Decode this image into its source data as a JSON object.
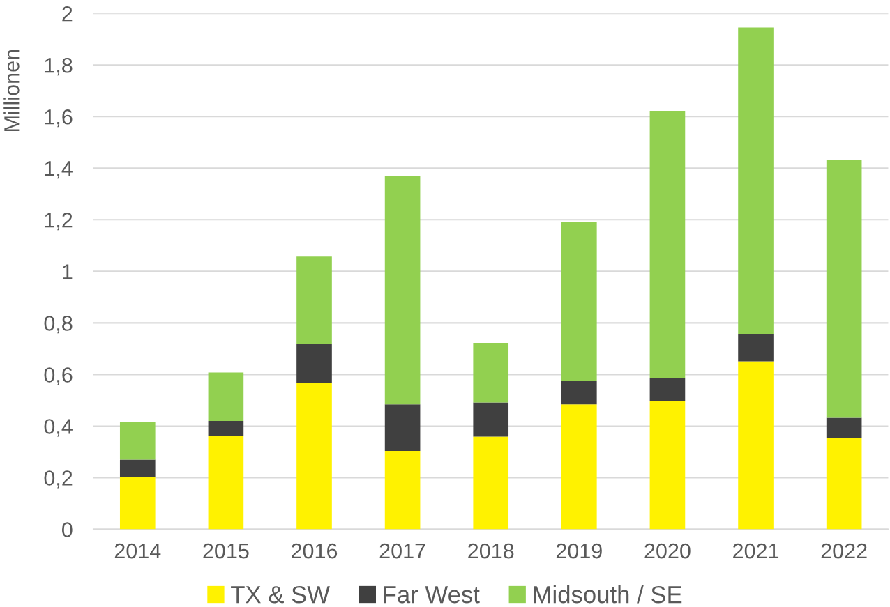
{
  "chart_data": {
    "type": "bar",
    "stacked": true,
    "ylabel": "Millionen",
    "categories": [
      "2014",
      "2015",
      "2016",
      "2017",
      "2018",
      "2019",
      "2020",
      "2021",
      "2022"
    ],
    "series": [
      {
        "name": "TX & SW",
        "color": "#fff200",
        "values": [
          0.204,
          0.362,
          0.568,
          0.304,
          0.359,
          0.484,
          0.496,
          0.651,
          0.355
        ]
      },
      {
        "name": "Far West",
        "color": "#404040",
        "values": [
          0.066,
          0.058,
          0.152,
          0.18,
          0.133,
          0.09,
          0.09,
          0.107,
          0.077
        ]
      },
      {
        "name": "Midsouth / SE",
        "color": "#92d050",
        "values": [
          0.145,
          0.188,
          0.337,
          0.885,
          0.231,
          0.618,
          1.036,
          1.187,
          0.999
        ]
      }
    ],
    "ylim": [
      0,
      2
    ],
    "yticks": [
      0,
      {
        "value": 0.2,
        "label": "0,2"
      },
      {
        "value": 0.4,
        "label": "0,4"
      },
      {
        "value": 0.6,
        "label": "0,6"
      },
      {
        "value": 0.8,
        "label": "0,8"
      },
      1,
      {
        "value": 1.2,
        "label": "1,2"
      },
      {
        "value": 1.4,
        "label": "1,4"
      },
      {
        "value": 1.6,
        "label": "1,6"
      },
      {
        "value": 1.8,
        "label": "1,8"
      },
      2
    ],
    "grid": "y",
    "legend": "bottom"
  }
}
